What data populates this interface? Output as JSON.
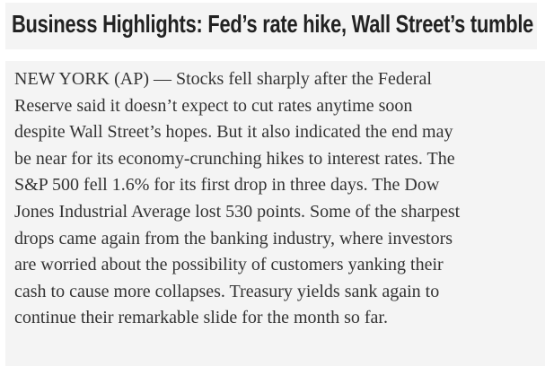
{
  "headline": "Business Highlights: Fed’s rate hike, Wall Street’s tumble",
  "lines": [
    "NEW YORK (AP) — Stocks fell sharply after the Federal",
    "Reserve said it doesn’t expect to cut rates anytime soon",
    "despite Wall Street’s hopes. But it also indicated the end may",
    "be near for its economy-crunching hikes to interest rates. The",
    "S&P 500 fell 1.6% for its first drop in three days. The Dow",
    "Jones Industrial Average lost 530 points. Some of the sharpest",
    "drops came again from the banking industry, where investors",
    "are worried about the possibility of customers yanking their",
    "cash to cause more collapses. Treasury yields sank again to",
    "continue their remarkable slide for the month so far."
  ]
}
